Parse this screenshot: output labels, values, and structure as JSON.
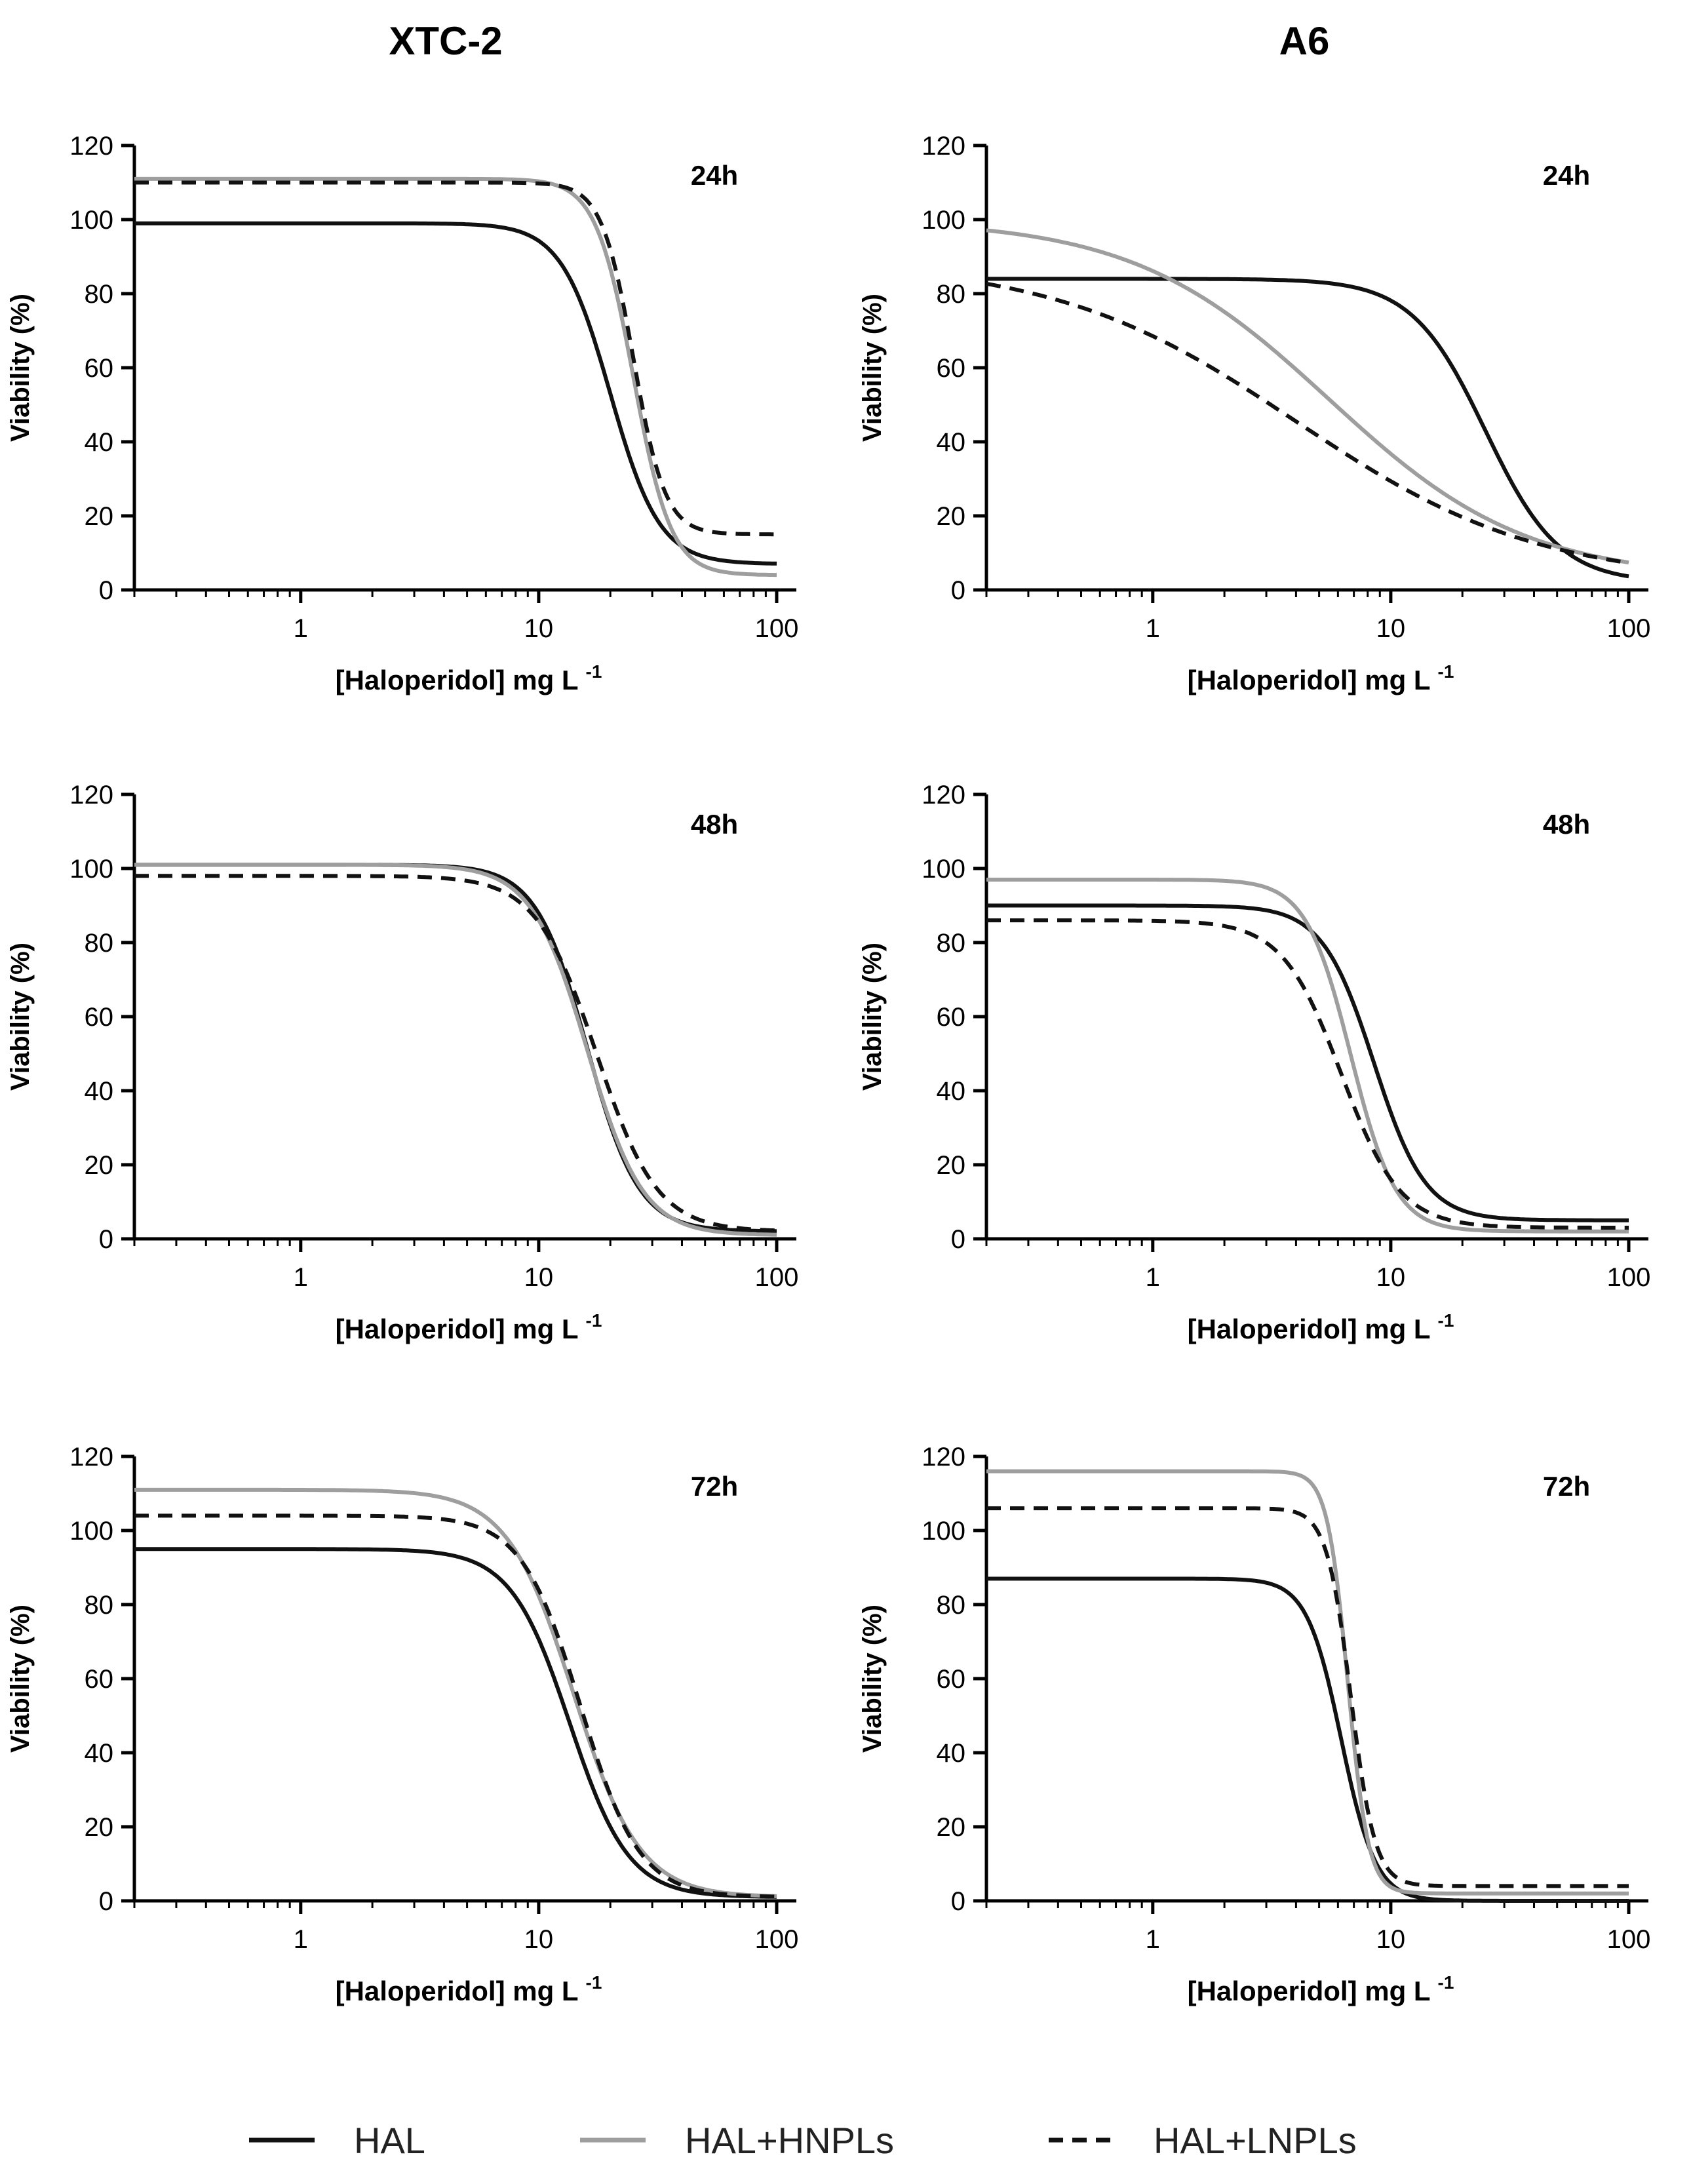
{
  "figure": {
    "columns": [
      "XTC-2",
      "A6"
    ]
  },
  "legend": [
    {
      "label": "HAL",
      "color": "#111111",
      "dash": "solid"
    },
    {
      "label": "HAL+HNPLs",
      "color": "#9e9e9e",
      "dash": "solid"
    },
    {
      "label": "HAL+LNPLs",
      "color": "#111111",
      "dash": "dashed"
    }
  ],
  "chart_data": [
    {
      "type": "line",
      "cell_line": "XTC-2",
      "annotation": "24h",
      "xscale": "log",
      "xlim": [
        0.2,
        100
      ],
      "xticks": [
        1,
        10,
        100
      ],
      "ylim": [
        0,
        120
      ],
      "yticks": [
        0,
        20,
        40,
        60,
        80,
        100,
        120
      ],
      "xlabel": "[Haloperidol] mg L",
      "xlabel_sup": "-1",
      "ylabel": "Viability (%)",
      "series": [
        {
          "name": "HAL",
          "top": 99,
          "bottom": 7,
          "ec50": 20,
          "hill": 4.2
        },
        {
          "name": "HAL+HNPLs",
          "top": 111,
          "bottom": 4,
          "ec50": 25,
          "hill": 5.5
        },
        {
          "name": "HAL+LNPLs",
          "top": 110,
          "bottom": 15,
          "ec50": 25,
          "hill": 6.5
        }
      ]
    },
    {
      "type": "line",
      "cell_line": "A6",
      "annotation": "24h",
      "xscale": "log",
      "xlim": [
        0.2,
        100
      ],
      "xticks": [
        1,
        10,
        100
      ],
      "ylim": [
        0,
        120
      ],
      "yticks": [
        0,
        20,
        40,
        60,
        80,
        100,
        120
      ],
      "xlabel": "[Haloperidol] mg L",
      "xlabel_sup": "-1",
      "ylabel": "Viability (%)",
      "series": [
        {
          "name": "HAL",
          "top": 84,
          "bottom": 2,
          "ec50": 25,
          "hill": 2.8
        },
        {
          "name": "HAL+HNPLs",
          "top": 100,
          "bottom": 3,
          "ec50": 5.5,
          "hill": 1.05
        },
        {
          "name": "HAL+LNPLs",
          "top": 89,
          "bottom": 2,
          "ec50": 4,
          "hill": 0.85
        }
      ]
    },
    {
      "type": "line",
      "cell_line": "XTC-2",
      "annotation": "48h",
      "xscale": "log",
      "xlim": [
        0.2,
        100
      ],
      "xticks": [
        1,
        10,
        100
      ],
      "ylim": [
        0,
        120
      ],
      "yticks": [
        0,
        20,
        40,
        60,
        80,
        100,
        120
      ],
      "xlabel": "[Haloperidol] mg L",
      "xlabel_sup": "-1",
      "ylabel": "Viability (%)",
      "series": [
        {
          "name": "HAL",
          "top": 101,
          "bottom": 2,
          "ec50": 16,
          "hill": 4.0
        },
        {
          "name": "HAL+HNPLs",
          "top": 101,
          "bottom": 1,
          "ec50": 16,
          "hill": 3.7
        },
        {
          "name": "HAL+LNPLs",
          "top": 98,
          "bottom": 2,
          "ec50": 17.5,
          "hill": 3.4
        }
      ]
    },
    {
      "type": "line",
      "cell_line": "A6",
      "annotation": "48h",
      "xscale": "log",
      "xlim": [
        0.2,
        100
      ],
      "xticks": [
        1,
        10,
        100
      ],
      "ylim": [
        0,
        120
      ],
      "yticks": [
        0,
        20,
        40,
        60,
        80,
        100,
        120
      ],
      "xlabel": "[Haloperidol] mg L",
      "xlabel_sup": "-1",
      "ylabel": "Viability (%)",
      "series": [
        {
          "name": "HAL",
          "top": 90,
          "bottom": 5,
          "ec50": 8.5,
          "hill": 4.0
        },
        {
          "name": "HAL+HNPLs",
          "top": 97,
          "bottom": 2,
          "ec50": 6.8,
          "hill": 4.6
        },
        {
          "name": "HAL+LNPLs",
          "top": 86,
          "bottom": 3,
          "ec50": 6.2,
          "hill": 3.5
        }
      ]
    },
    {
      "type": "line",
      "cell_line": "XTC-2",
      "annotation": "72h",
      "xscale": "log",
      "xlim": [
        0.2,
        100
      ],
      "xticks": [
        1,
        10,
        100
      ],
      "ylim": [
        0,
        120
      ],
      "yticks": [
        0,
        20,
        40,
        60,
        80,
        100,
        120
      ],
      "xlabel": "[Haloperidol] mg L",
      "xlabel_sup": "-1",
      "ylabel": "Viability (%)",
      "series": [
        {
          "name": "HAL",
          "top": 95,
          "bottom": 1,
          "ec50": 13.5,
          "hill": 3.5
        },
        {
          "name": "HAL+HNPLs",
          "top": 111,
          "bottom": 1,
          "ec50": 14,
          "hill": 3.1
        },
        {
          "name": "HAL+LNPLs",
          "top": 104,
          "bottom": 1,
          "ec50": 15,
          "hill": 3.5
        }
      ]
    },
    {
      "type": "line",
      "cell_line": "A6",
      "annotation": "72h",
      "xscale": "log",
      "xlim": [
        0.2,
        100
      ],
      "xticks": [
        1,
        10,
        100
      ],
      "ylim": [
        0,
        120
      ],
      "yticks": [
        0,
        20,
        40,
        60,
        80,
        100,
        120
      ],
      "xlabel": "[Haloperidol] mg L",
      "xlabel_sup": "-1",
      "ylabel": "Viability (%)",
      "series": [
        {
          "name": "HAL",
          "top": 87,
          "bottom": 0,
          "ec50": 6.2,
          "hill": 6.0
        },
        {
          "name": "HAL+HNPLs",
          "top": 116,
          "bottom": 2,
          "ec50": 6.6,
          "hill": 10.0
        },
        {
          "name": "HAL+LNPLs",
          "top": 106,
          "bottom": 4,
          "ec50": 6.8,
          "hill": 8.5
        }
      ]
    }
  ]
}
